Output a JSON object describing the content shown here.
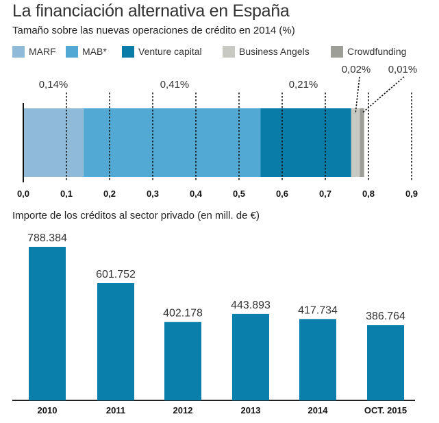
{
  "title": "La financiación alternativa en España",
  "chart_data": [
    {
      "type": "bar",
      "orientation": "horizontal-stacked",
      "title": "Tamaño sobre las nuevas operaciones de crédito en 2014 (%)",
      "xlim": [
        0,
        0.9
      ],
      "xticks": [
        "0,0",
        "0,1",
        "0,2",
        "0,3",
        "0,4",
        "0,5",
        "0,6",
        "0,7",
        "0,8",
        "0,9"
      ],
      "grid": true,
      "legend": "top",
      "series": [
        {
          "name": "MARF",
          "value": 0.14,
          "label": "0,14%",
          "color": "#8fbbd9"
        },
        {
          "name": "MAB*",
          "value": 0.41,
          "label": "0,41%",
          "color": "#52a9d3"
        },
        {
          "name": "Venture capital",
          "value": 0.21,
          "label": "0,21%",
          "color": "#0a7ca8"
        },
        {
          "name": "Business Angels",
          "value": 0.02,
          "label": "0,02%",
          "color": "#c9c9c3"
        },
        {
          "name": "Crowdfunding",
          "value": 0.01,
          "label": "0,01%",
          "color": "#9e9e98"
        }
      ]
    },
    {
      "type": "bar",
      "title": "Importe de los créditos al sector privado (en mill. de €)",
      "categories": [
        "2010",
        "2011",
        "2012",
        "2013",
        "2014",
        "OCT. 2015"
      ],
      "values": [
        788384,
        601752,
        402178,
        443893,
        417734,
        386764
      ],
      "labels": [
        "788.384",
        "601.752",
        "402.178",
        "443.893",
        "417.734",
        "386.764"
      ],
      "color": "#0a7fab",
      "ylim": [
        0,
        800000
      ]
    }
  ]
}
